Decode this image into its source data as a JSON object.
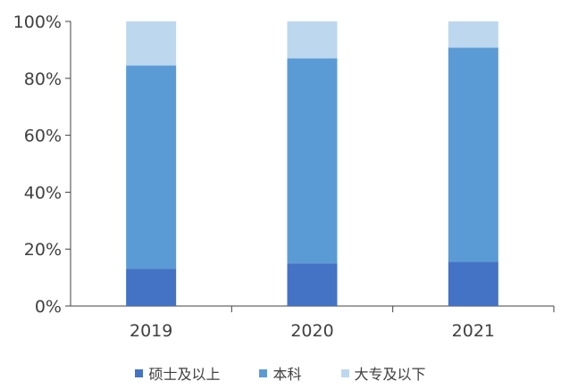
{
  "chart_data": {
    "type": "bar",
    "stacked": true,
    "categories": [
      "2019",
      "2020",
      "2021"
    ],
    "series": [
      {
        "name": "硕士及以上",
        "color": "#4472C4",
        "values": [
          13,
          15,
          15.5
        ]
      },
      {
        "name": "本科",
        "color": "#5B9BD5",
        "values": [
          71.5,
          72,
          75.3
        ]
      },
      {
        "name": "大专及以下",
        "color": "#BDD7EE",
        "values": [
          15.5,
          13,
          9.2
        ]
      }
    ],
    "yticks": [
      "0%",
      "20%",
      "40%",
      "60%",
      "80%",
      "100%"
    ],
    "ylim": [
      0,
      100
    ],
    "grid": false,
    "legend_position": "bottom"
  }
}
